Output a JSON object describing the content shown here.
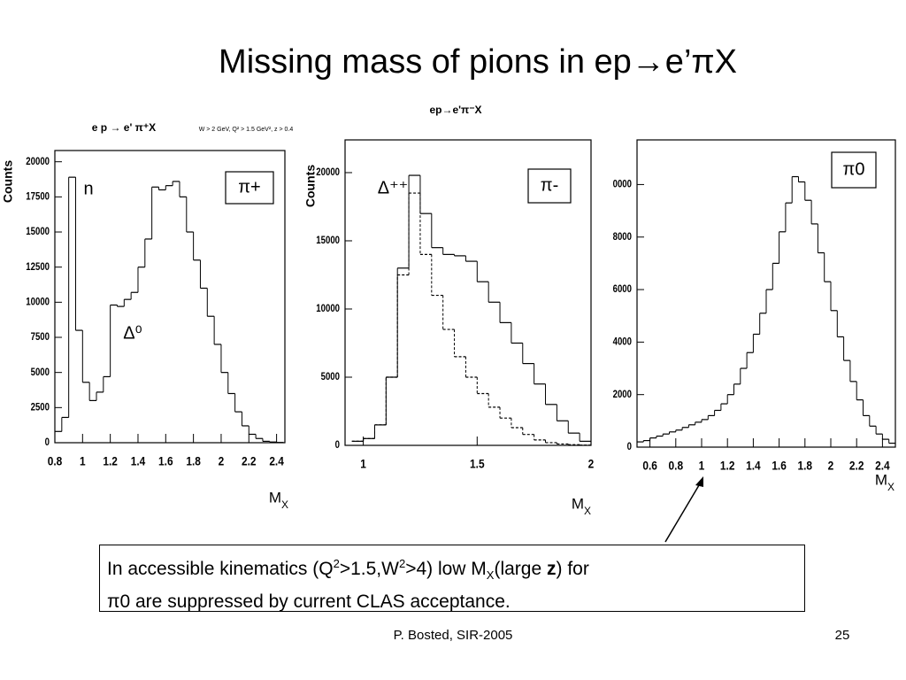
{
  "slide": {
    "title": "Missing mass of pions in ep→e’πX",
    "note": {
      "line1": [
        "In accessible kinematics (Q",
        "2",
        ">1.5,W",
        "2",
        ">4) low M",
        "X",
        "(large ",
        "z",
        ") for"
      ],
      "line2": "π0 are suppressed by current CLAS acceptance."
    },
    "footer": "P. Bosted,  SIR-2005",
    "page": "25"
  },
  "chart_data": [
    {
      "type": "histogram",
      "title": "e p → e' π⁺X",
      "subtitle": "W > 2 GeV, Q² > 1.5 GeV², z > 0.4",
      "y_label": "Counts",
      "x_label": "M",
      "x_label_sub": "X",
      "annotations": [
        "n",
        "Δ⁰",
        "π+"
      ],
      "bins": [
        0.8,
        0.85,
        0.9,
        0.95,
        1.0,
        1.05,
        1.1,
        1.15,
        1.2,
        1.25,
        1.3,
        1.35,
        1.4,
        1.45,
        1.5,
        1.55,
        1.6,
        1.65,
        1.7,
        1.75,
        1.8,
        1.85,
        1.9,
        1.95,
        2.0,
        2.05,
        2.1,
        2.15,
        2.2,
        2.25,
        2.3,
        2.35,
        2.4,
        2.45
      ],
      "series": [
        {
          "style": "solid",
          "color": "#000000",
          "values": [
            800,
            1800,
            18900,
            8000,
            4300,
            3000,
            3600,
            4700,
            9800,
            9700,
            10200,
            10700,
            12500,
            14500,
            18200,
            18000,
            18300,
            18600,
            17500,
            15000,
            13000,
            11000,
            9000,
            7000,
            5000,
            3500,
            2200,
            1200,
            600,
            300,
            100,
            50,
            20
          ]
        }
      ],
      "xlim": [
        0.8,
        2.46
      ],
      "ylim": [
        0,
        20800
      ],
      "xticks": [
        0.8,
        1,
        1.2,
        1.4,
        1.6,
        1.8,
        2,
        2.2,
        2.4
      ],
      "yticks": [
        0,
        2500,
        5000,
        7500,
        10000,
        12500,
        15000,
        17500,
        20000
      ]
    },
    {
      "type": "histogram",
      "title": "ep→e'π⁻X",
      "y_label": "Counts",
      "x_label": "M",
      "x_label_sub": "X",
      "annotations": [
        "Δ⁺⁺",
        "π-"
      ],
      "bins": [
        0.95,
        1.0,
        1.05,
        1.1,
        1.15,
        1.2,
        1.25,
        1.3,
        1.35,
        1.4,
        1.45,
        1.5,
        1.55,
        1.6,
        1.65,
        1.7,
        1.75,
        1.8,
        1.85,
        1.9,
        1.95,
        2.0
      ],
      "series": [
        {
          "style": "solid",
          "color": "#000000",
          "values": [
            300,
            500,
            1500,
            5000,
            13000,
            19800,
            17000,
            14500,
            14000,
            13900,
            13500,
            12000,
            10500,
            9000,
            7500,
            6000,
            4500,
            3000,
            1800,
            900,
            300
          ]
        },
        {
          "style": "dashed",
          "color": "#000000",
          "values": [
            300,
            500,
            1500,
            5000,
            12500,
            18500,
            14000,
            11000,
            8500,
            6500,
            5000,
            3800,
            2800,
            2000,
            1300,
            800,
            400,
            200,
            100,
            50,
            20
          ]
        }
      ],
      "xlim": [
        0.92,
        2.0
      ],
      "ylim": [
        0,
        22400
      ],
      "xticks": [
        1,
        1.5,
        2
      ],
      "yticks": [
        0,
        5000,
        10000,
        15000,
        20000
      ]
    },
    {
      "type": "histogram",
      "x_label": "M",
      "x_label_sub": "X",
      "annotations": [
        "π0"
      ],
      "bins": [
        0.5,
        0.55,
        0.6,
        0.65,
        0.7,
        0.75,
        0.8,
        0.85,
        0.9,
        0.95,
        1.0,
        1.05,
        1.1,
        1.15,
        1.2,
        1.25,
        1.3,
        1.35,
        1.4,
        1.45,
        1.5,
        1.55,
        1.6,
        1.65,
        1.7,
        1.75,
        1.8,
        1.85,
        1.9,
        1.95,
        2.0,
        2.05,
        2.1,
        2.15,
        2.2,
        2.25,
        2.3,
        2.35,
        2.4,
        2.45,
        2.5
      ],
      "series": [
        {
          "style": "solid",
          "color": "#000000",
          "values": [
            200,
            250,
            350,
            420,
            500,
            580,
            650,
            750,
            850,
            950,
            1050,
            1200,
            1400,
            1650,
            2000,
            2400,
            3000,
            3600,
            4300,
            5100,
            6000,
            7000,
            8200,
            9300,
            10300,
            10100,
            9400,
            8500,
            7400,
            6300,
            5200,
            4200,
            3300,
            2500,
            1800,
            1200,
            800,
            500,
            300,
            150
          ]
        }
      ],
      "xlim": [
        0.5,
        2.5
      ],
      "ylim": [
        0,
        11700
      ],
      "xticks": [
        0.6,
        0.8,
        1,
        1.2,
        1.4,
        1.6,
        1.8,
        2,
        2.2,
        2.4
      ],
      "yticks": [
        0,
        2000,
        4000,
        6000,
        8000,
        {
          "value": 10000,
          "label": "0000"
        }
      ]
    }
  ]
}
